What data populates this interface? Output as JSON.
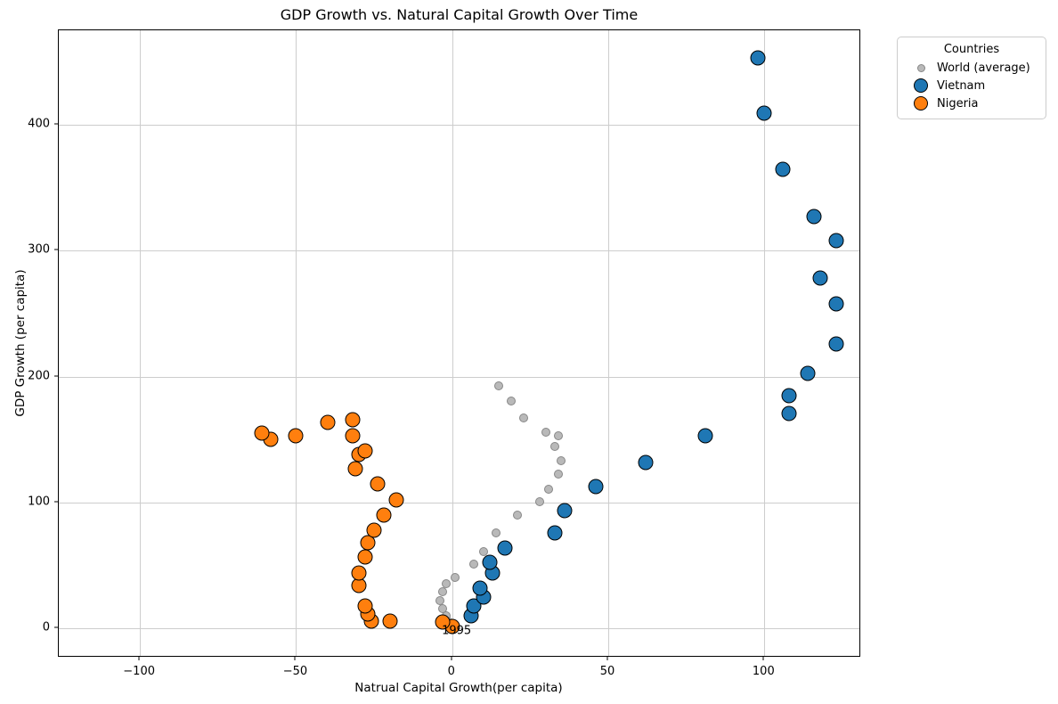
{
  "chart_data": {
    "type": "scatter",
    "title": "GDP Growth vs. Natural Capital Growth Over Time",
    "xlabel": "Natrual Capital Growth(per capita)",
    "ylabel": "GDP Growth (per capita)",
    "xlim": [
      -126,
      131
    ],
    "ylim": [
      -23,
      475
    ],
    "xticks": {
      "values": [
        -100,
        -50,
        0,
        50,
        100
      ],
      "labels": [
        "−100",
        "−50",
        "0",
        "50",
        "100"
      ]
    },
    "yticks": {
      "values": [
        0,
        100,
        200,
        300,
        400
      ],
      "labels": [
        "0",
        "100",
        "200",
        "300",
        "400"
      ]
    },
    "grid": true,
    "legend": {
      "title": "Countries",
      "position": "outside-top-right"
    },
    "annotation": {
      "text": "1995",
      "x": 1.4,
      "y": -1.6
    },
    "series": [
      {
        "name": "World (average)",
        "color": "#b9b9b9",
        "edge_color": "#878787",
        "marker_radius": 5,
        "edge_width": 1,
        "points": [
          [
            0,
            1
          ],
          [
            -1,
            5
          ],
          [
            -2,
            10
          ],
          [
            -3,
            16
          ],
          [
            -4,
            22
          ],
          [
            -3,
            29
          ],
          [
            -2,
            36
          ],
          [
            1,
            41
          ],
          [
            7,
            51
          ],
          [
            10,
            61
          ],
          [
            14,
            76
          ],
          [
            21,
            90
          ],
          [
            28,
            101
          ],
          [
            31,
            111
          ],
          [
            34,
            123
          ],
          [
            35,
            133
          ],
          [
            33,
            145
          ],
          [
            34,
            153
          ],
          [
            30,
            156
          ],
          [
            23,
            167
          ],
          [
            19,
            181
          ],
          [
            15,
            193
          ]
        ]
      },
      {
        "name": "Vietnam",
        "color": "#1f77b4",
        "edge_color": "#000000",
        "marker_radius": 8.5,
        "edge_width": 1.5,
        "points": [
          [
            6,
            10
          ],
          [
            7,
            18
          ],
          [
            10,
            25
          ],
          [
            9,
            32
          ],
          [
            13,
            44
          ],
          [
            12,
            53
          ],
          [
            17,
            64
          ],
          [
            33,
            76
          ],
          [
            36,
            94
          ],
          [
            46,
            113
          ],
          [
            62,
            132
          ],
          [
            81,
            153
          ],
          [
            108,
            171
          ],
          [
            108,
            185
          ],
          [
            114,
            203
          ],
          [
            123,
            226
          ],
          [
            123,
            258
          ],
          [
            118,
            278
          ],
          [
            123,
            308
          ],
          [
            116,
            327
          ],
          [
            106,
            365
          ],
          [
            100,
            409
          ],
          [
            98,
            453
          ]
        ]
      },
      {
        "name": "Nigeria",
        "color": "#ff7f0e",
        "edge_color": "#000000",
        "marker_radius": 8.5,
        "edge_width": 1.5,
        "points": [
          [
            0,
            2
          ],
          [
            -3,
            5
          ],
          [
            -20,
            6
          ],
          [
            -26,
            6
          ],
          [
            -27,
            12
          ],
          [
            -28,
            18
          ],
          [
            -30,
            34
          ],
          [
            -30,
            44
          ],
          [
            -28,
            57
          ],
          [
            -27,
            68
          ],
          [
            -25,
            78
          ],
          [
            -22,
            90
          ],
          [
            -18,
            102
          ],
          [
            -24,
            115
          ],
          [
            -31,
            127
          ],
          [
            -30,
            138
          ],
          [
            -28,
            141
          ],
          [
            -32,
            153
          ],
          [
            -32,
            166
          ],
          [
            -40,
            164
          ],
          [
            -50,
            153
          ],
          [
            -58,
            150
          ],
          [
            -61,
            155
          ]
        ]
      }
    ]
  }
}
